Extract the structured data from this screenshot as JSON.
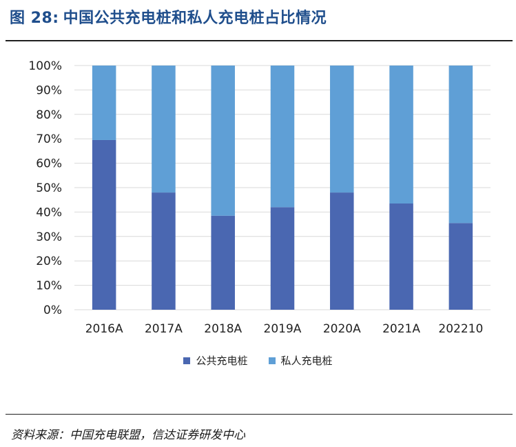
{
  "figure": {
    "number": "图 28:",
    "title": "中国公共充电桩和私人充电桩占比情况"
  },
  "source": "资料来源：中国充电联盟，信达证券研发中心",
  "colors": {
    "public": "#4a67b1",
    "private": "#5f9fd6",
    "grid": "#d9d9d9",
    "title": "#1f4e8c"
  },
  "chart_data": {
    "type": "bar",
    "stacked": true,
    "categories": [
      "2016A",
      "2017A",
      "2018A",
      "2019A",
      "2020A",
      "2021A",
      "202210"
    ],
    "series": [
      {
        "name": "公共充电桩",
        "values": [
          69.5,
          48,
          38.5,
          42,
          48,
          43.5,
          35.5
        ]
      },
      {
        "name": "私人充电桩",
        "values": [
          30.5,
          52,
          61.5,
          58,
          52,
          56.5,
          64.5
        ]
      }
    ],
    "y_ticks": [
      "0%",
      "10%",
      "20%",
      "30%",
      "40%",
      "50%",
      "60%",
      "70%",
      "80%",
      "90%",
      "100%"
    ],
    "ylim": [
      0,
      100
    ],
    "grid": true,
    "legend_position": "bottom"
  }
}
